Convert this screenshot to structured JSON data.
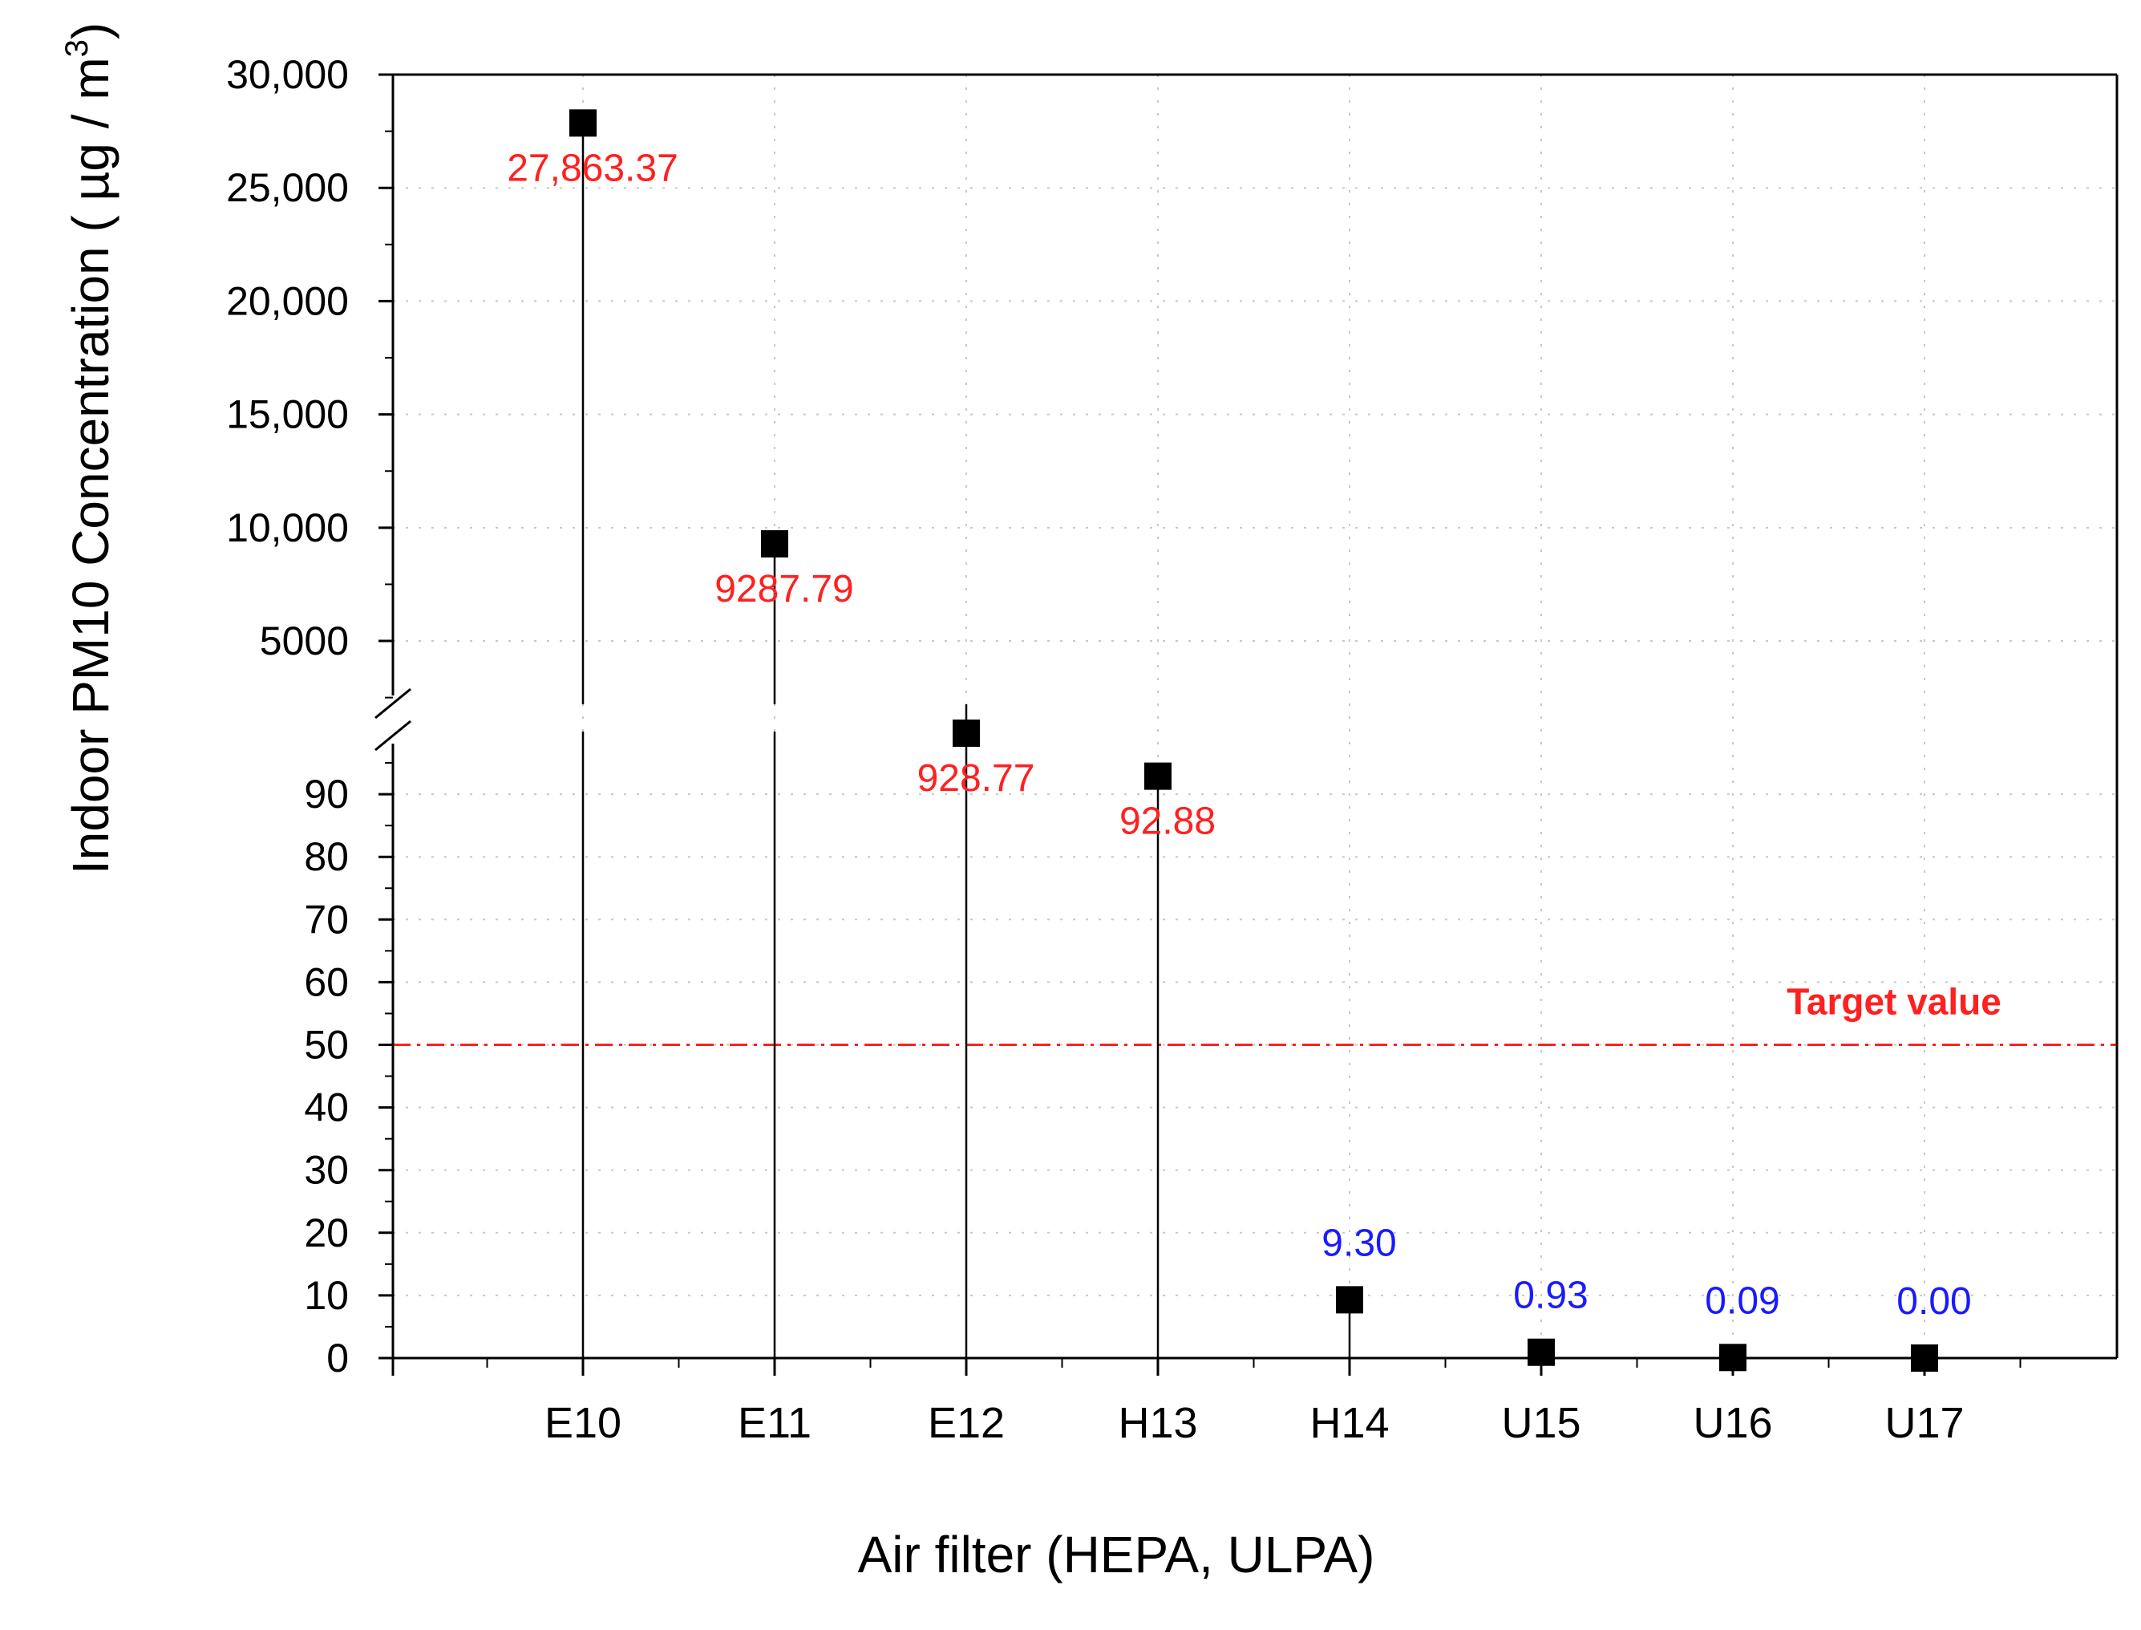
{
  "chart_data": {
    "type": "scatter",
    "subtype": "stem",
    "title": "",
    "xlabel": "Air filter (HEPA, ULPA)",
    "ylabel_main": "Indoor PM10 Concentration ( µg / m",
    "ylabel_sup": "3",
    "ylabel_close": ")",
    "categories": [
      "E10",
      "E11",
      "E12",
      "H13",
      "H14",
      "U15",
      "U16",
      "U17"
    ],
    "values": [
      27863.37,
      9287.79,
      928.77,
      92.88,
      9.3,
      0.93,
      0.09,
      0.0
    ],
    "data_labels": [
      "27,863.37",
      "9287.79",
      "928.77",
      "92.88",
      "9.30",
      "0.93",
      "0.09",
      "0.00"
    ],
    "label_colors": [
      "#ff2020",
      "#ff2020",
      "#ff2020",
      "#ff2020",
      "#1a1aff",
      "#1a1aff",
      "#1a1aff",
      "#1a1aff"
    ],
    "y_axis_broken": true,
    "y_lower_range": [
      0,
      100
    ],
    "y_upper_range": [
      1000,
      30000
    ],
    "y_lower_ticks": [
      {
        "value": 0,
        "label": "0"
      },
      {
        "value": 10,
        "label": "10"
      },
      {
        "value": 20,
        "label": "20"
      },
      {
        "value": 30,
        "label": "30"
      },
      {
        "value": 40,
        "label": "40"
      },
      {
        "value": 50,
        "label": "50"
      },
      {
        "value": 60,
        "label": "60"
      },
      {
        "value": 70,
        "label": "70"
      },
      {
        "value": 80,
        "label": "80"
      },
      {
        "value": 90,
        "label": "90"
      }
    ],
    "y_upper_ticks": [
      {
        "value": 5000,
        "label": "5000"
      },
      {
        "value": 10000,
        "label": "10,000"
      },
      {
        "value": 15000,
        "label": "15,000"
      },
      {
        "value": 20000,
        "label": "20,000"
      },
      {
        "value": 25000,
        "label": "25,000"
      },
      {
        "value": 30000,
        "label": "30,000"
      }
    ],
    "reference_line": {
      "value": 50,
      "label": "Target value",
      "color": "#ff2020",
      "style": "dash-dot"
    },
    "marker_color": "#000000",
    "grid": true
  }
}
